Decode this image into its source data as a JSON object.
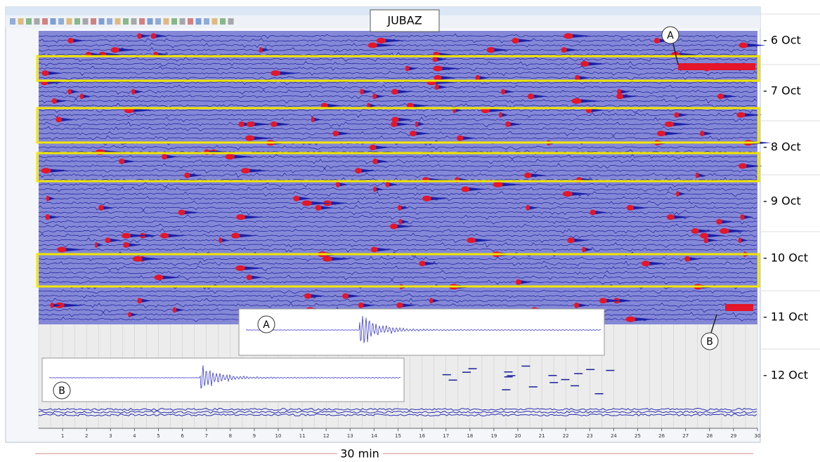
{
  "header": {
    "station": "JUBAZ"
  },
  "dates": [
    "- 6 Oct",
    "- 7 Oct",
    "- 8 Oct",
    "- 9 Oct",
    "- 10 Oct",
    "- 11 Oct",
    "- 12 Oct"
  ],
  "callouts": {
    "a": "A",
    "b": "B"
  },
  "insets": {
    "a": "A",
    "b": "B"
  },
  "axis": {
    "minutes": [
      "1",
      "2",
      "3",
      "4",
      "5",
      "6",
      "7",
      "8",
      "9",
      "10",
      "11",
      "12",
      "13",
      "14",
      "15",
      "16",
      "17",
      "18",
      "19",
      "20",
      "21",
      "22",
      "23",
      "24",
      "25",
      "26",
      "27",
      "28",
      "29",
      "30"
    ]
  },
  "footer": {
    "span": "30 min"
  }
}
